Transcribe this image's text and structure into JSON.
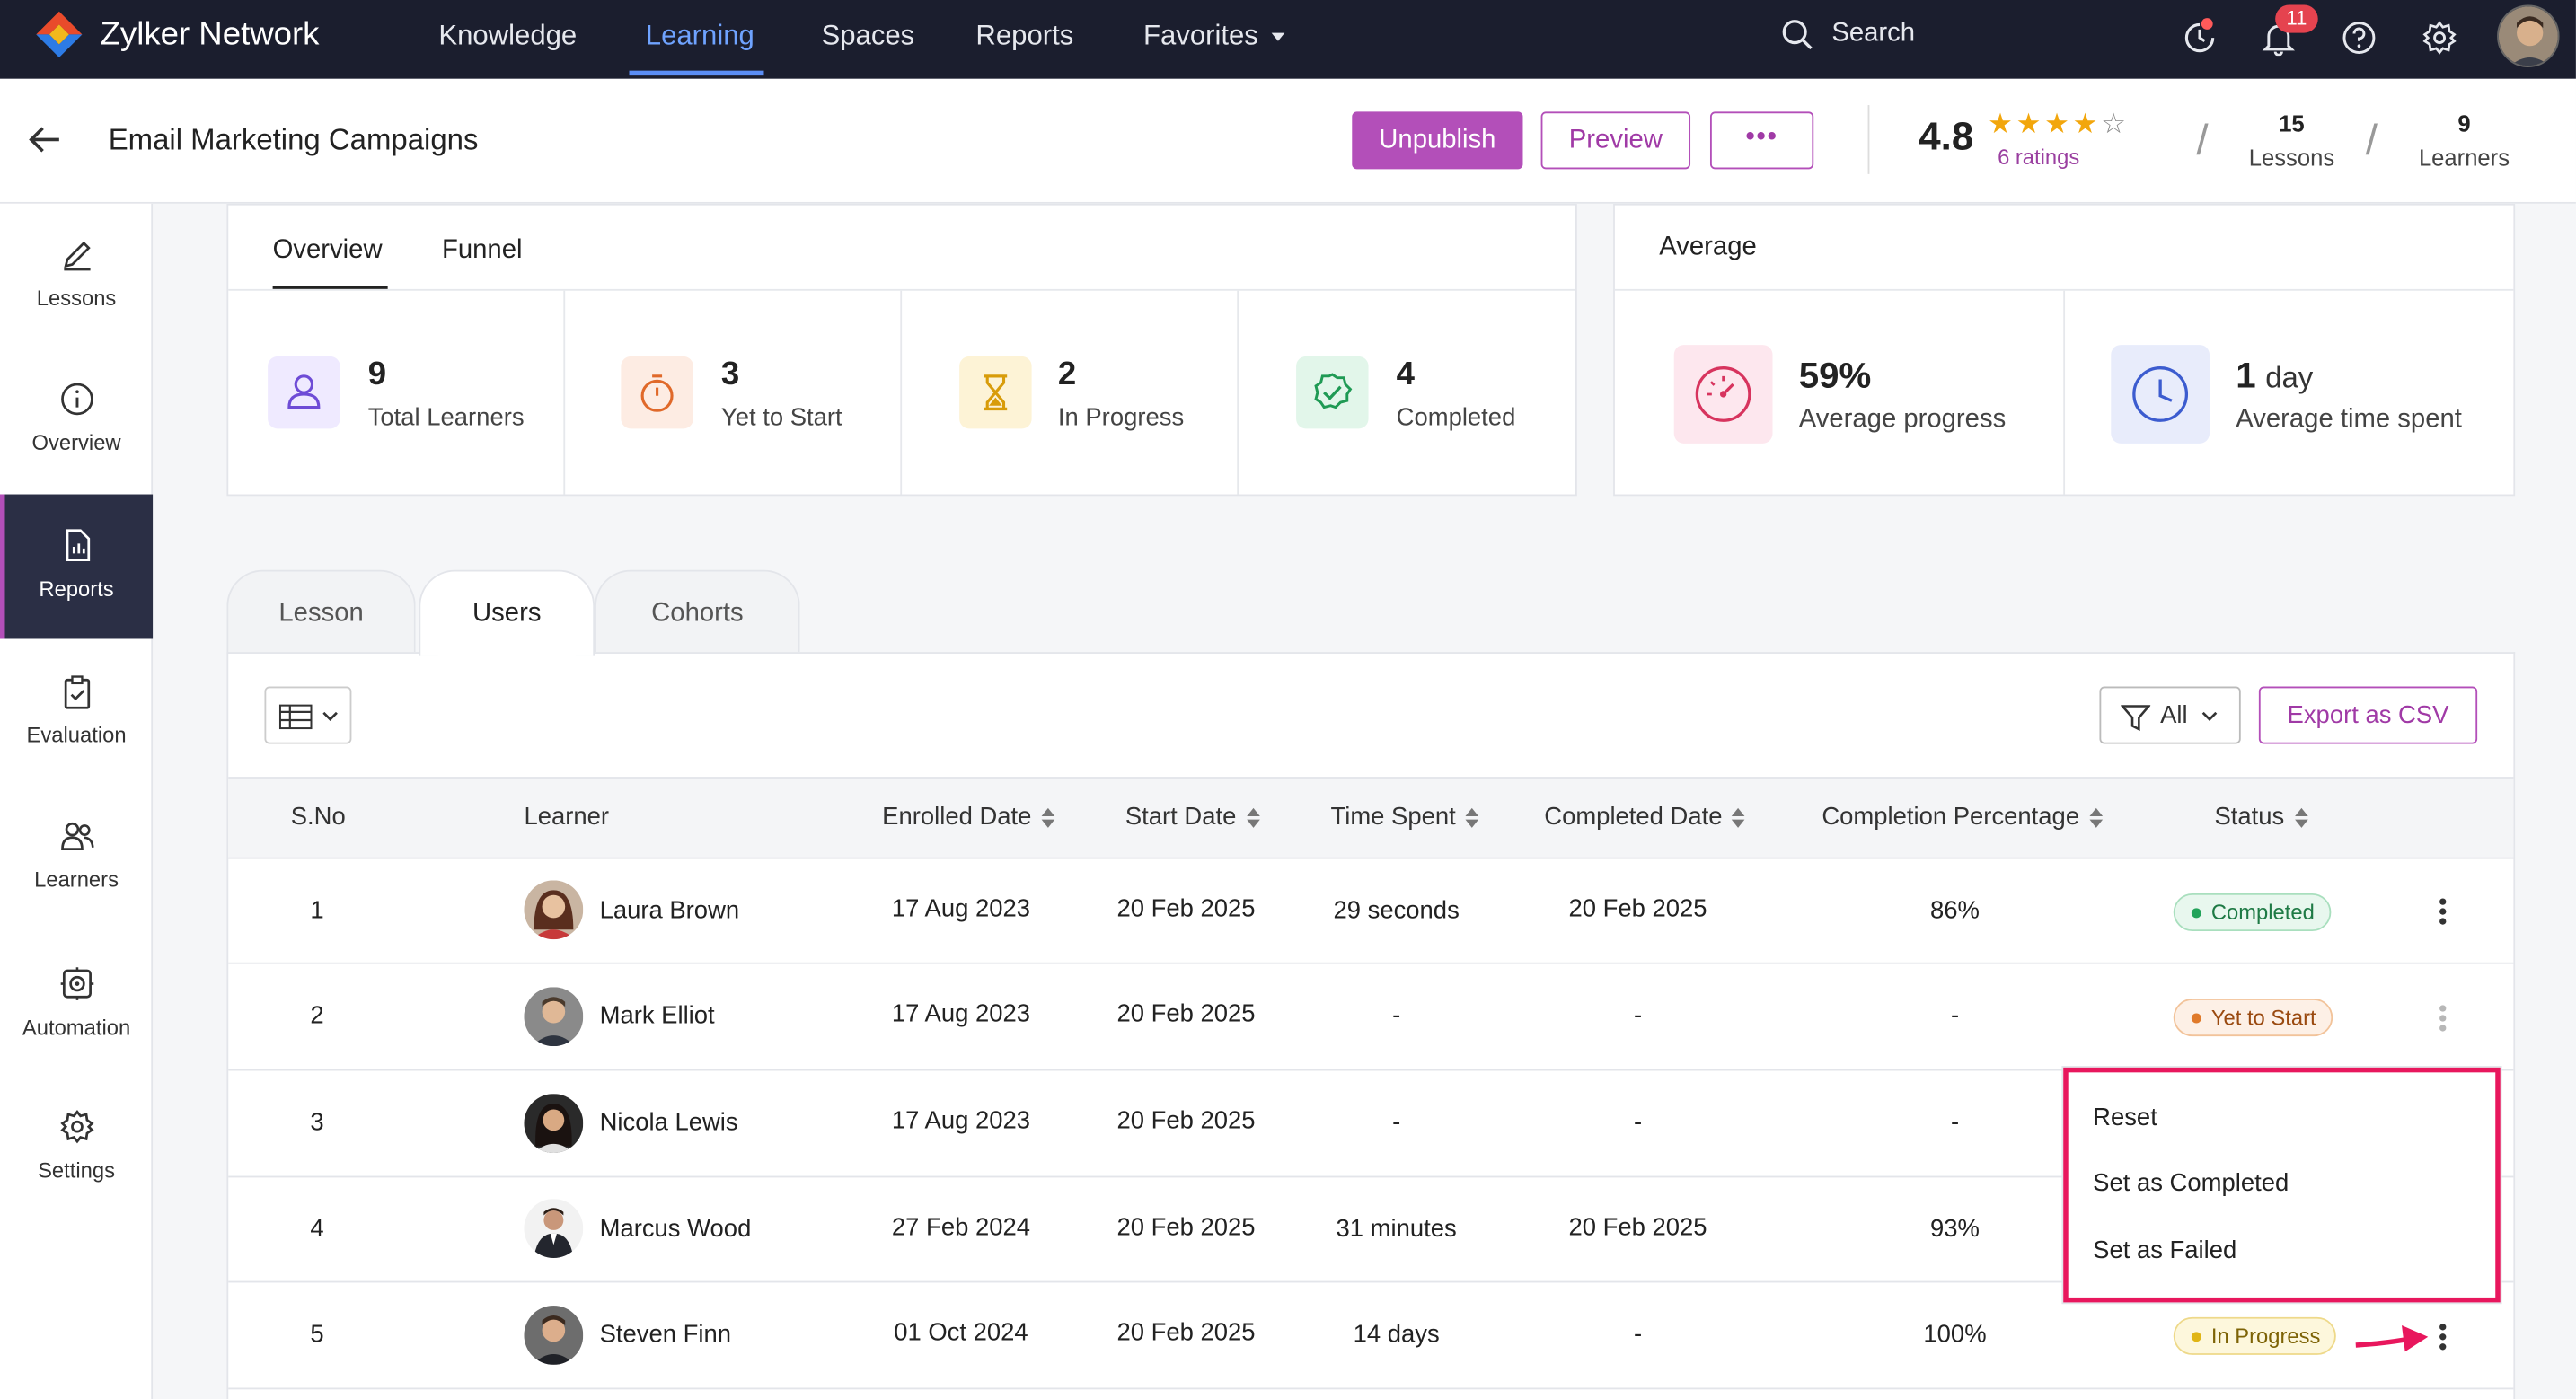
{
  "app": {
    "brand": "Zylker Network"
  },
  "nav": {
    "items": [
      {
        "label": "Knowledge"
      },
      {
        "label": "Learning",
        "active": true
      },
      {
        "label": "Spaces"
      },
      {
        "label": "Reports"
      },
      {
        "label": "Favorites",
        "dropdown": true
      }
    ],
    "search_label": "Search",
    "notification_count": "11"
  },
  "page": {
    "title": "Email Marketing Campaigns",
    "unpublish_label": "Unpublish",
    "preview_label": "Preview",
    "more_label": "•••",
    "rating": "4.8",
    "stars": 4,
    "ratings_text": "6 ratings",
    "lessons_count": "15",
    "lessons_label": "Lessons",
    "learners_count": "9",
    "learners_label": "Learners"
  },
  "sidebar": {
    "items": [
      {
        "label": "Lessons",
        "icon": "pencil-icon"
      },
      {
        "label": "Overview",
        "icon": "info-icon"
      },
      {
        "label": "Reports",
        "icon": "report-icon",
        "active": true
      },
      {
        "label": "Evaluation",
        "icon": "clipboard-check-icon"
      },
      {
        "label": "Learners",
        "icon": "users-icon"
      },
      {
        "label": "Automation",
        "icon": "automation-gear-icon"
      },
      {
        "label": "Settings",
        "icon": "gear-icon"
      }
    ]
  },
  "overview": {
    "tabs": [
      {
        "label": "Overview",
        "active": true
      },
      {
        "label": "Funnel"
      }
    ],
    "metrics": [
      {
        "value": "9",
        "label": "Total Learners",
        "icon": "user-icon",
        "color": "#efeaff"
      },
      {
        "value": "3",
        "label": "Yet to Start",
        "icon": "timer-icon",
        "color": "#fdece3"
      },
      {
        "value": "2",
        "label": "In Progress",
        "icon": "hourglass-icon",
        "color": "#fdf3d6"
      },
      {
        "value": "4",
        "label": "Completed",
        "icon": "check-badge-icon",
        "color": "#e2f6ea"
      }
    ]
  },
  "average": {
    "title": "Average",
    "progress_value": "59%",
    "progress_label": "Average progress",
    "time_value": "1",
    "time_unit": "day",
    "time_label": "Average time spent"
  },
  "content_tabs": [
    {
      "label": "Lesson"
    },
    {
      "label": "Users",
      "active": true
    },
    {
      "label": "Cohorts"
    }
  ],
  "toolbar": {
    "filter_label": "All",
    "export_label": "Export as CSV"
  },
  "table": {
    "columns": [
      "S.No",
      "Learner",
      "Enrolled Date",
      "Start Date",
      "Time Spent",
      "Completed Date",
      "Completion Percentage",
      "Status"
    ],
    "rows": [
      {
        "sno": "1",
        "name": "Laura Brown",
        "enrolled": "17 Aug 2023",
        "start": "20 Feb 2025",
        "time": "29 seconds",
        "completed": "20 Feb 2025",
        "pct": "86%",
        "status": "Completed"
      },
      {
        "sno": "2",
        "name": "Mark Elliot",
        "enrolled": "17 Aug 2023",
        "start": "20 Feb 2025",
        "time": "-",
        "completed": "-",
        "pct": "-",
        "status": "Yet to Start"
      },
      {
        "sno": "3",
        "name": "Nicola Lewis",
        "enrolled": "17 Aug 2023",
        "start": "20 Feb 2025",
        "time": "-",
        "completed": "-",
        "pct": "-",
        "status": ""
      },
      {
        "sno": "4",
        "name": "Marcus Wood",
        "enrolled": "27 Feb 2024",
        "start": "20 Feb 2025",
        "time": "31 minutes",
        "completed": "20 Feb 2025",
        "pct": "93%",
        "status": ""
      },
      {
        "sno": "5",
        "name": "Steven Finn",
        "enrolled": "01 Oct 2024",
        "start": "20 Feb 2025",
        "time": "14 days",
        "completed": "-",
        "pct": "100%",
        "status": "In Progress"
      }
    ]
  },
  "context_menu": {
    "items": [
      "Reset",
      "Set as Completed",
      "Set as Failed"
    ]
  },
  "colors": {
    "accent": "#b34fb9",
    "topbar": "#1b1e2e",
    "highlight": "#e8175d",
    "active_nav": "#6fa3ff"
  }
}
